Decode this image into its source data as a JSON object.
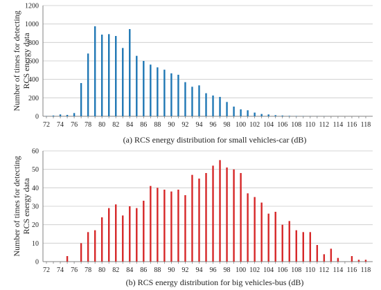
{
  "chart_data": [
    {
      "type": "bar",
      "title": "(a) RCS energy distribution for small vehicles-car (dB)",
      "ylabel": [
        "Number of times for detecting",
        "RCS energy data"
      ],
      "xlabel": "",
      "color": "#1f77b4",
      "grid": true,
      "ylim": [
        0,
        1200
      ],
      "yticks": [
        0,
        200,
        400,
        600,
        800,
        1000,
        1200
      ],
      "xlim": [
        71.5,
        119
      ],
      "xticks": [
        72,
        74,
        76,
        78,
        80,
        82,
        84,
        86,
        88,
        90,
        92,
        94,
        96,
        98,
        100,
        102,
        104,
        106,
        108,
        110,
        112,
        114,
        116,
        118
      ],
      "x": [
        72,
        73,
        74,
        75,
        76,
        77,
        78,
        79,
        80,
        81,
        82,
        83,
        84,
        85,
        86,
        87,
        88,
        89,
        90,
        91,
        92,
        93,
        94,
        95,
        96,
        97,
        98,
        99,
        100,
        101,
        102,
        103,
        104,
        105,
        106,
        107,
        108,
        109,
        110,
        111,
        112,
        113,
        114,
        115,
        116,
        117,
        118
      ],
      "values": [
        2,
        8,
        20,
        15,
        35,
        360,
        680,
        975,
        885,
        890,
        870,
        740,
        945,
        655,
        600,
        560,
        530,
        505,
        465,
        450,
        370,
        320,
        335,
        250,
        225,
        210,
        155,
        105,
        75,
        65,
        40,
        25,
        20,
        12,
        8,
        5,
        3,
        2,
        1,
        1,
        1,
        0,
        0,
        0,
        0,
        0,
        0
      ]
    },
    {
      "type": "bar",
      "title": "(b) RCS energy distribution for big vehicles-bus (dB)",
      "ylabel": [
        "Number of times for detecting",
        "RCS energy data"
      ],
      "xlabel": "",
      "color": "#d62728",
      "grid": true,
      "ylim": [
        0,
        60
      ],
      "yticks": [
        0,
        10,
        20,
        30,
        40,
        50,
        60
      ],
      "xlim": [
        71.5,
        119
      ],
      "xticks": [
        72,
        74,
        76,
        78,
        80,
        82,
        84,
        86,
        88,
        90,
        92,
        94,
        96,
        98,
        100,
        102,
        104,
        106,
        108,
        110,
        112,
        114,
        116,
        118
      ],
      "x": [
        72,
        73,
        74,
        75,
        76,
        77,
        78,
        79,
        80,
        81,
        82,
        83,
        84,
        85,
        86,
        87,
        88,
        89,
        90,
        91,
        92,
        93,
        94,
        95,
        96,
        97,
        98,
        99,
        100,
        101,
        102,
        103,
        104,
        105,
        106,
        107,
        108,
        109,
        110,
        111,
        112,
        113,
        114,
        115,
        116,
        117,
        118
      ],
      "values": [
        0,
        0,
        0,
        3,
        0,
        10,
        16,
        17,
        24,
        29,
        31,
        25,
        30,
        29,
        33,
        41,
        40,
        39,
        38,
        39,
        36,
        47,
        45,
        48,
        52,
        55,
        51,
        50,
        48,
        37,
        35,
        32,
        26,
        27,
        20,
        22,
        17,
        16,
        16,
        9,
        4,
        7,
        2,
        0,
        3,
        1,
        1
      ]
    }
  ]
}
